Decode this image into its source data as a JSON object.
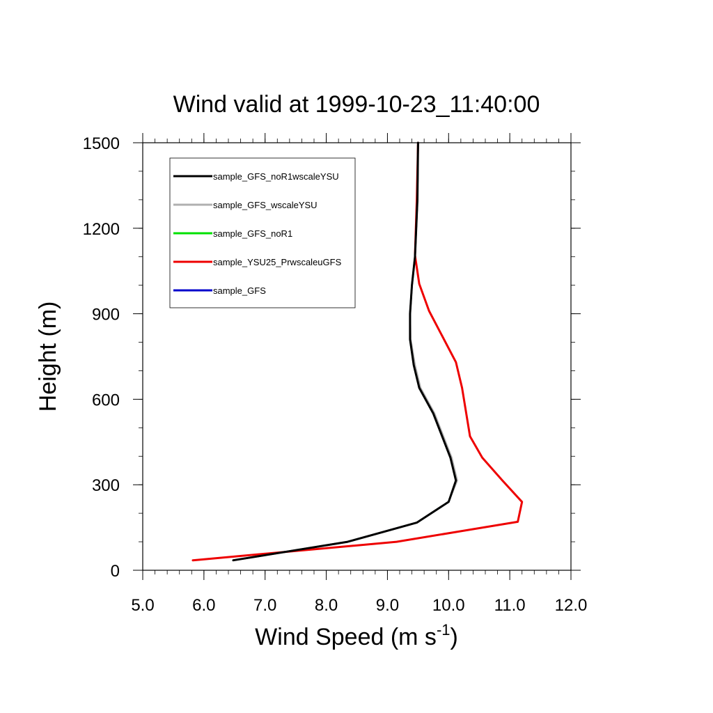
{
  "chart_data": {
    "type": "line",
    "title": "Wind valid at 1999-10-23_11:40:00",
    "xlabel": "Wind Speed (m s",
    "xlabel_sup": "-1",
    "xlabel_end": ")",
    "ylabel": "Height (m)",
    "xlim": [
      5.0,
      12.0
    ],
    "ylim": [
      0,
      1500
    ],
    "x_ticks": [
      "5.0",
      "6.0",
      "7.0",
      "8.0",
      "9.0",
      "10.0",
      "11.0",
      "12.0"
    ],
    "y_ticks": [
      "0",
      "300",
      "600",
      "900",
      "1200",
      "1500"
    ],
    "legend_position": "top-left",
    "series": [
      {
        "name": "sample_GFS_noR1wscaleYSU",
        "color": "#000000",
        "x": [
          6.48,
          8.35,
          9.48,
          10.0,
          10.12,
          10.03,
          9.75,
          9.52,
          9.43,
          9.37,
          9.37,
          9.4,
          9.45,
          9.49,
          9.5
        ],
        "y": [
          35,
          100,
          167,
          240,
          315,
          395,
          550,
          640,
          720,
          810,
          900,
          1000,
          1100,
          1300,
          1500
        ]
      },
      {
        "name": "sample_GFS_wscaleYSU",
        "color": "#b0b0b0",
        "x": [
          6.48,
          8.35,
          9.48,
          10.0,
          10.14,
          10.05,
          9.77,
          9.54,
          9.45,
          9.38,
          9.37,
          9.4,
          9.45,
          9.49,
          9.5
        ],
        "y": [
          35,
          100,
          167,
          240,
          315,
          395,
          550,
          640,
          720,
          810,
          900,
          1000,
          1100,
          1300,
          1500
        ]
      },
      {
        "name": "sample_GFS_noR1",
        "color": "#00e000",
        "x": [
          6.48,
          8.35,
          9.48,
          10.0,
          10.12,
          10.03,
          9.75,
          9.52,
          9.43,
          9.37,
          9.37,
          9.4,
          9.45,
          9.49,
          9.5
        ],
        "y": [
          35,
          100,
          167,
          240,
          315,
          395,
          550,
          640,
          720,
          810,
          900,
          1000,
          1100,
          1300,
          1500
        ]
      },
      {
        "name": "sample_YSU25_PrwscaleuGFS",
        "color": "#ee0000",
        "x": [
          5.82,
          9.15,
          11.13,
          11.2,
          10.88,
          10.55,
          10.35,
          10.22,
          10.12,
          9.68,
          9.52,
          9.45,
          9.48,
          9.5
        ],
        "y": [
          35,
          100,
          170,
          240,
          315,
          395,
          470,
          640,
          730,
          910,
          1005,
          1105,
          1300,
          1500
        ]
      },
      {
        "name": "sample_GFS",
        "color": "#0000cc",
        "x": [
          6.48,
          8.35,
          9.48,
          10.0,
          10.13,
          10.04,
          9.76,
          9.53,
          9.44,
          9.37,
          9.37,
          9.4,
          9.45,
          9.49,
          9.5
        ],
        "y": [
          35,
          100,
          167,
          240,
          315,
          395,
          550,
          640,
          720,
          810,
          900,
          1000,
          1100,
          1300,
          1500
        ]
      }
    ]
  }
}
